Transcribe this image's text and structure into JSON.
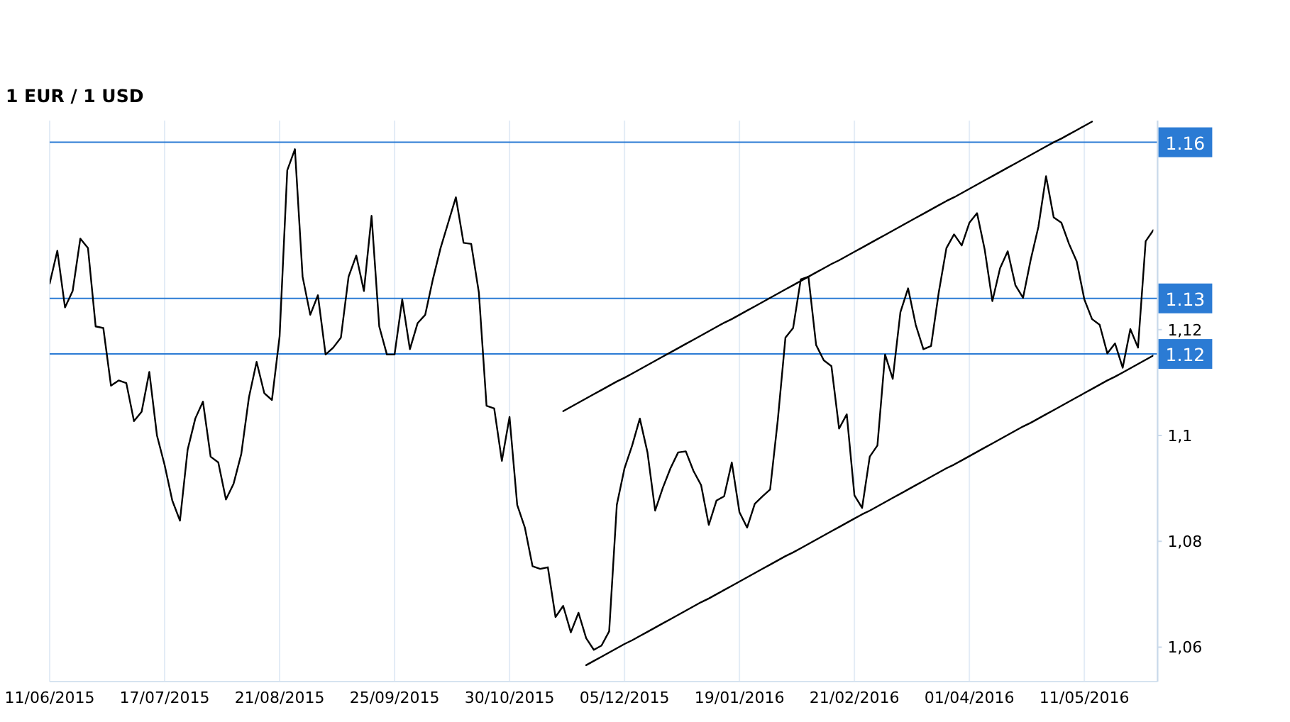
{
  "chart_data": {
    "type": "line",
    "title": "1 EUR / 1 USD",
    "categories": [
      "11/06/2015",
      null,
      null,
      null,
      null,
      null,
      null,
      null,
      null,
      null,
      null,
      null,
      null,
      null,
      null,
      "17/07/2015",
      null,
      null,
      null,
      null,
      null,
      null,
      null,
      null,
      null,
      null,
      null,
      null,
      null,
      null,
      "21/08/2015",
      null,
      null,
      null,
      null,
      null,
      null,
      null,
      null,
      null,
      null,
      null,
      null,
      null,
      null,
      "25/09/2015",
      null,
      null,
      null,
      null,
      null,
      null,
      null,
      null,
      null,
      null,
      null,
      null,
      null,
      null,
      "30/10/2015",
      null,
      null,
      null,
      null,
      null,
      null,
      null,
      null,
      null,
      null,
      null,
      null,
      null,
      null,
      "05/12/2015",
      null,
      null,
      null,
      null,
      null,
      null,
      null,
      null,
      null,
      null,
      null,
      null,
      null,
      null,
      "19/01/2016",
      null,
      null,
      null,
      null,
      null,
      null,
      null,
      null,
      null,
      null,
      null,
      null,
      null,
      null,
      "21/02/2016",
      null,
      null,
      null,
      null,
      null,
      null,
      null,
      null,
      null,
      null,
      null,
      null,
      null,
      null,
      "01/04/2016",
      null,
      null,
      null,
      null,
      null,
      null,
      null,
      null,
      null,
      null,
      null,
      null,
      null,
      null,
      "11/05/2016",
      null,
      null,
      null,
      null,
      null,
      null,
      null,
      null,
      null
    ],
    "series": [
      {
        "color": "#000000",
        "values": [
          1.1287,
          1.1349,
          1.1242,
          1.1273,
          1.1372,
          1.1354,
          1.1206,
          1.1203,
          1.1094,
          1.1104,
          1.1099,
          1.1027,
          1.1045,
          1.112,
          1.1,
          1.0944,
          1.0877,
          1.0839,
          1.0973,
          1.1032,
          1.1064,
          1.096,
          1.0949,
          1.0879,
          1.0909,
          1.0965,
          1.1072,
          1.1139,
          1.108,
          1.1067,
          1.1187,
          1.1501,
          1.1541,
          1.13,
          1.1228,
          1.1265,
          1.1153,
          1.1166,
          1.1185,
          1.13,
          1.134,
          1.1273,
          1.1415,
          1.1206,
          1.1153,
          1.1153,
          1.1257,
          1.1163,
          1.1212,
          1.1228,
          1.1295,
          1.1354,
          1.1402,
          1.145,
          1.1364,
          1.1362,
          1.127,
          1.1056,
          1.1051,
          1.0952,
          1.1035,
          1.0869,
          1.0826,
          1.0753,
          1.0748,
          1.0751,
          1.0657,
          1.0678,
          1.0628,
          1.0665,
          1.0617,
          1.0595,
          1.0603,
          1.063,
          1.0869,
          1.0938,
          1.0981,
          1.1032,
          1.0968,
          1.0858,
          1.0901,
          1.0938,
          1.0968,
          1.097,
          1.0933,
          1.0906,
          1.0831,
          1.0877,
          1.0885,
          1.0949,
          1.0855,
          1.0826,
          1.0871,
          1.0885,
          1.0898,
          1.1029,
          1.1185,
          1.1203,
          1.1295,
          1.13,
          1.1171,
          1.1142,
          1.1131,
          1.1013,
          1.104,
          1.0887,
          1.0863,
          1.096,
          1.0981,
          1.1153,
          1.1107,
          1.1233,
          1.1278,
          1.1209,
          1.1163,
          1.1169,
          1.127,
          1.1354,
          1.138,
          1.1359,
          1.1402,
          1.142,
          1.1351,
          1.1254,
          1.1316,
          1.1348,
          1.1284,
          1.126,
          1.1332,
          1.1394,
          1.149,
          1.1412,
          1.1402,
          1.1362,
          1.1329,
          1.1257,
          1.122,
          1.1209,
          1.1155,
          1.1174,
          1.1128,
          1.1201,
          1.1166,
          1.1367,
          1.1388
        ]
      },
      {
        "type": "line",
        "color": "#000000",
        "values": [
          null,
          null,
          null,
          null,
          null,
          null,
          null,
          null,
          null,
          null,
          null,
          null,
          null,
          null,
          null,
          null,
          null,
          null,
          null,
          null,
          null,
          null,
          null,
          null,
          null,
          null,
          null,
          null,
          null,
          null,
          null,
          null,
          null,
          null,
          null,
          null,
          null,
          null,
          null,
          null,
          null,
          null,
          null,
          null,
          null,
          null,
          null,
          null,
          null,
          null,
          null,
          null,
          null,
          null,
          null,
          null,
          null,
          null,
          null,
          null,
          null,
          null,
          null,
          null,
          null,
          null,
          null,
          1.1046,
          1.1054,
          1.1062,
          1.107,
          1.1078,
          1.1086,
          1.1094,
          1.1102,
          1.1109,
          1.1117,
          1.1125,
          1.1133,
          1.1141,
          1.1149,
          1.1157,
          1.1165,
          1.1173,
          1.1181,
          1.1189,
          1.1197,
          1.1205,
          1.1213,
          1.122,
          1.1228,
          1.1236,
          1.1244,
          1.1252,
          1.126,
          1.1268,
          1.1276,
          1.1284,
          1.1292,
          1.13,
          1.1308,
          1.1316,
          1.1324,
          1.1331,
          1.1339,
          1.1347,
          1.1355,
          1.1363,
          1.1371,
          1.1379,
          1.1387,
          1.1395,
          1.1403,
          1.1411,
          1.1419,
          1.1427,
          1.1435,
          1.1443,
          1.145,
          1.1458,
          1.1466,
          1.1474,
          1.1482,
          1.149,
          1.1498,
          1.1506,
          1.1514,
          1.1522,
          1.153,
          1.1538,
          1.1546,
          1.1554,
          1.1561,
          1.1569,
          1.1577,
          1.1585,
          1.1593,
          null,
          null,
          null,
          null,
          null,
          null,
          null,
          null
        ]
      },
      {
        "type": "line",
        "color": "#000000",
        "values": [
          null,
          null,
          null,
          null,
          null,
          null,
          null,
          null,
          null,
          null,
          null,
          null,
          null,
          null,
          null,
          null,
          null,
          null,
          null,
          null,
          null,
          null,
          null,
          null,
          null,
          null,
          null,
          null,
          null,
          null,
          null,
          null,
          null,
          null,
          null,
          null,
          null,
          null,
          null,
          null,
          null,
          null,
          null,
          null,
          null,
          null,
          null,
          null,
          null,
          null,
          null,
          null,
          null,
          null,
          null,
          null,
          null,
          null,
          null,
          null,
          null,
          null,
          null,
          null,
          null,
          null,
          null,
          null,
          null,
          null,
          1.0566,
          1.0574,
          1.0582,
          1.059,
          1.0598,
          1.0606,
          1.0613,
          1.0621,
          1.0629,
          1.0637,
          1.0645,
          1.0653,
          1.0661,
          1.0669,
          1.0677,
          1.0685,
          1.0692,
          1.07,
          1.0708,
          1.0716,
          1.0724,
          1.0732,
          1.074,
          1.0748,
          1.0756,
          1.0764,
          1.0772,
          1.0779,
          1.0787,
          1.0795,
          1.0803,
          1.0811,
          1.0819,
          1.0827,
          1.0835,
          1.0843,
          1.0851,
          1.0858,
          1.0866,
          1.0874,
          1.0882,
          1.089,
          1.0898,
          1.0906,
          1.0914,
          1.0922,
          1.093,
          1.0938,
          1.0945,
          1.0953,
          1.0961,
          1.0969,
          1.0977,
          1.0985,
          1.0993,
          1.1001,
          1.1009,
          1.1017,
          1.1024,
          1.1032,
          1.104,
          1.1048,
          1.1056,
          1.1064,
          1.1072,
          1.108,
          1.1088,
          1.1096,
          1.1104,
          1.1111,
          1.1119,
          1.1127,
          1.1135,
          1.1143,
          1.1151
        ]
      }
    ],
    "ylim": [
      1.0535,
      1.1595
    ],
    "yticks": [
      {
        "value": 1.06,
        "label": "1,06"
      },
      {
        "value": 1.08,
        "label": "1,08"
      },
      {
        "value": 1.1,
        "label": "1,1"
      },
      {
        "value": 1.12,
        "label": "1,12"
      }
    ],
    "grid": "x",
    "ref_lines": [
      {
        "axis": "y",
        "value": 1.1554,
        "label": "1.16",
        "color": "#2b7bd4"
      },
      {
        "axis": "y",
        "value": 1.1259,
        "label": "1.13",
        "color": "#2b7bd4"
      },
      {
        "axis": "y",
        "value": 1.1154,
        "label": "1.12",
        "color": "#2b7bd4"
      }
    ]
  }
}
